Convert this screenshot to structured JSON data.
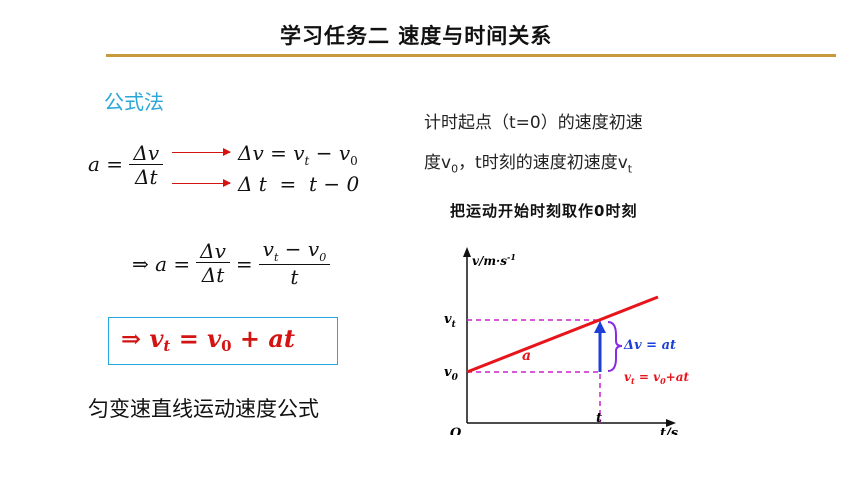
{
  "slide": {
    "title": "学习任务二 速度与时间关系",
    "subhead": "公式法",
    "formula1": {
      "a": "a =",
      "num": "Δv",
      "den": "Δt"
    },
    "formula2": {
      "dv": "Δv = v",
      "t_sub": "t",
      "minus": "− v",
      "zero_sub": "0"
    },
    "formula3": "Δ t  =  t − 0",
    "derive": {
      "prefix": "⇒ a =",
      "num1": "Δv",
      "den1": "Δt",
      "eq": "=",
      "num2": "v",
      "num2sub": "t",
      "num2b": "− v",
      "num2bsub": "0",
      "den2": "t"
    },
    "boxed": "⇒ v",
    "boxed_sub1": "t",
    "boxed_mid": " = v",
    "boxed_sub2": "0",
    "boxed_end": " + at",
    "caption": "匀变速直线运动速度公式",
    "desc_line1": "计时起点（t=0）的速度初速",
    "desc_line2a": "度v",
    "desc_line2a_sub": "0",
    "desc_line2b": "，t时刻的速度初速度v",
    "desc_line2b_sub": "t",
    "note": "把运动开始时刻取作0时刻"
  },
  "graph": {
    "y_axis_label": "v/m·s",
    "y_axis_exp": "-1",
    "x_axis_label": "t/s",
    "origin": "O",
    "vt": "v",
    "vt_sub": "t",
    "v0": "v",
    "v0_sub": "0",
    "t_tick": "t",
    "line_label": "a",
    "dv_label": "Δv = at",
    "formula_label": "v",
    "formula_label_sub": "t",
    "formula_label_rest": " = v",
    "formula_label_sub2": "0",
    "formula_label_end": "+at",
    "colors": {
      "line": "#e8141c",
      "dashed": "#cc22cc",
      "dv": "#1e3fd6",
      "brace": "#8a2be2",
      "formula": "#e8141c"
    }
  }
}
